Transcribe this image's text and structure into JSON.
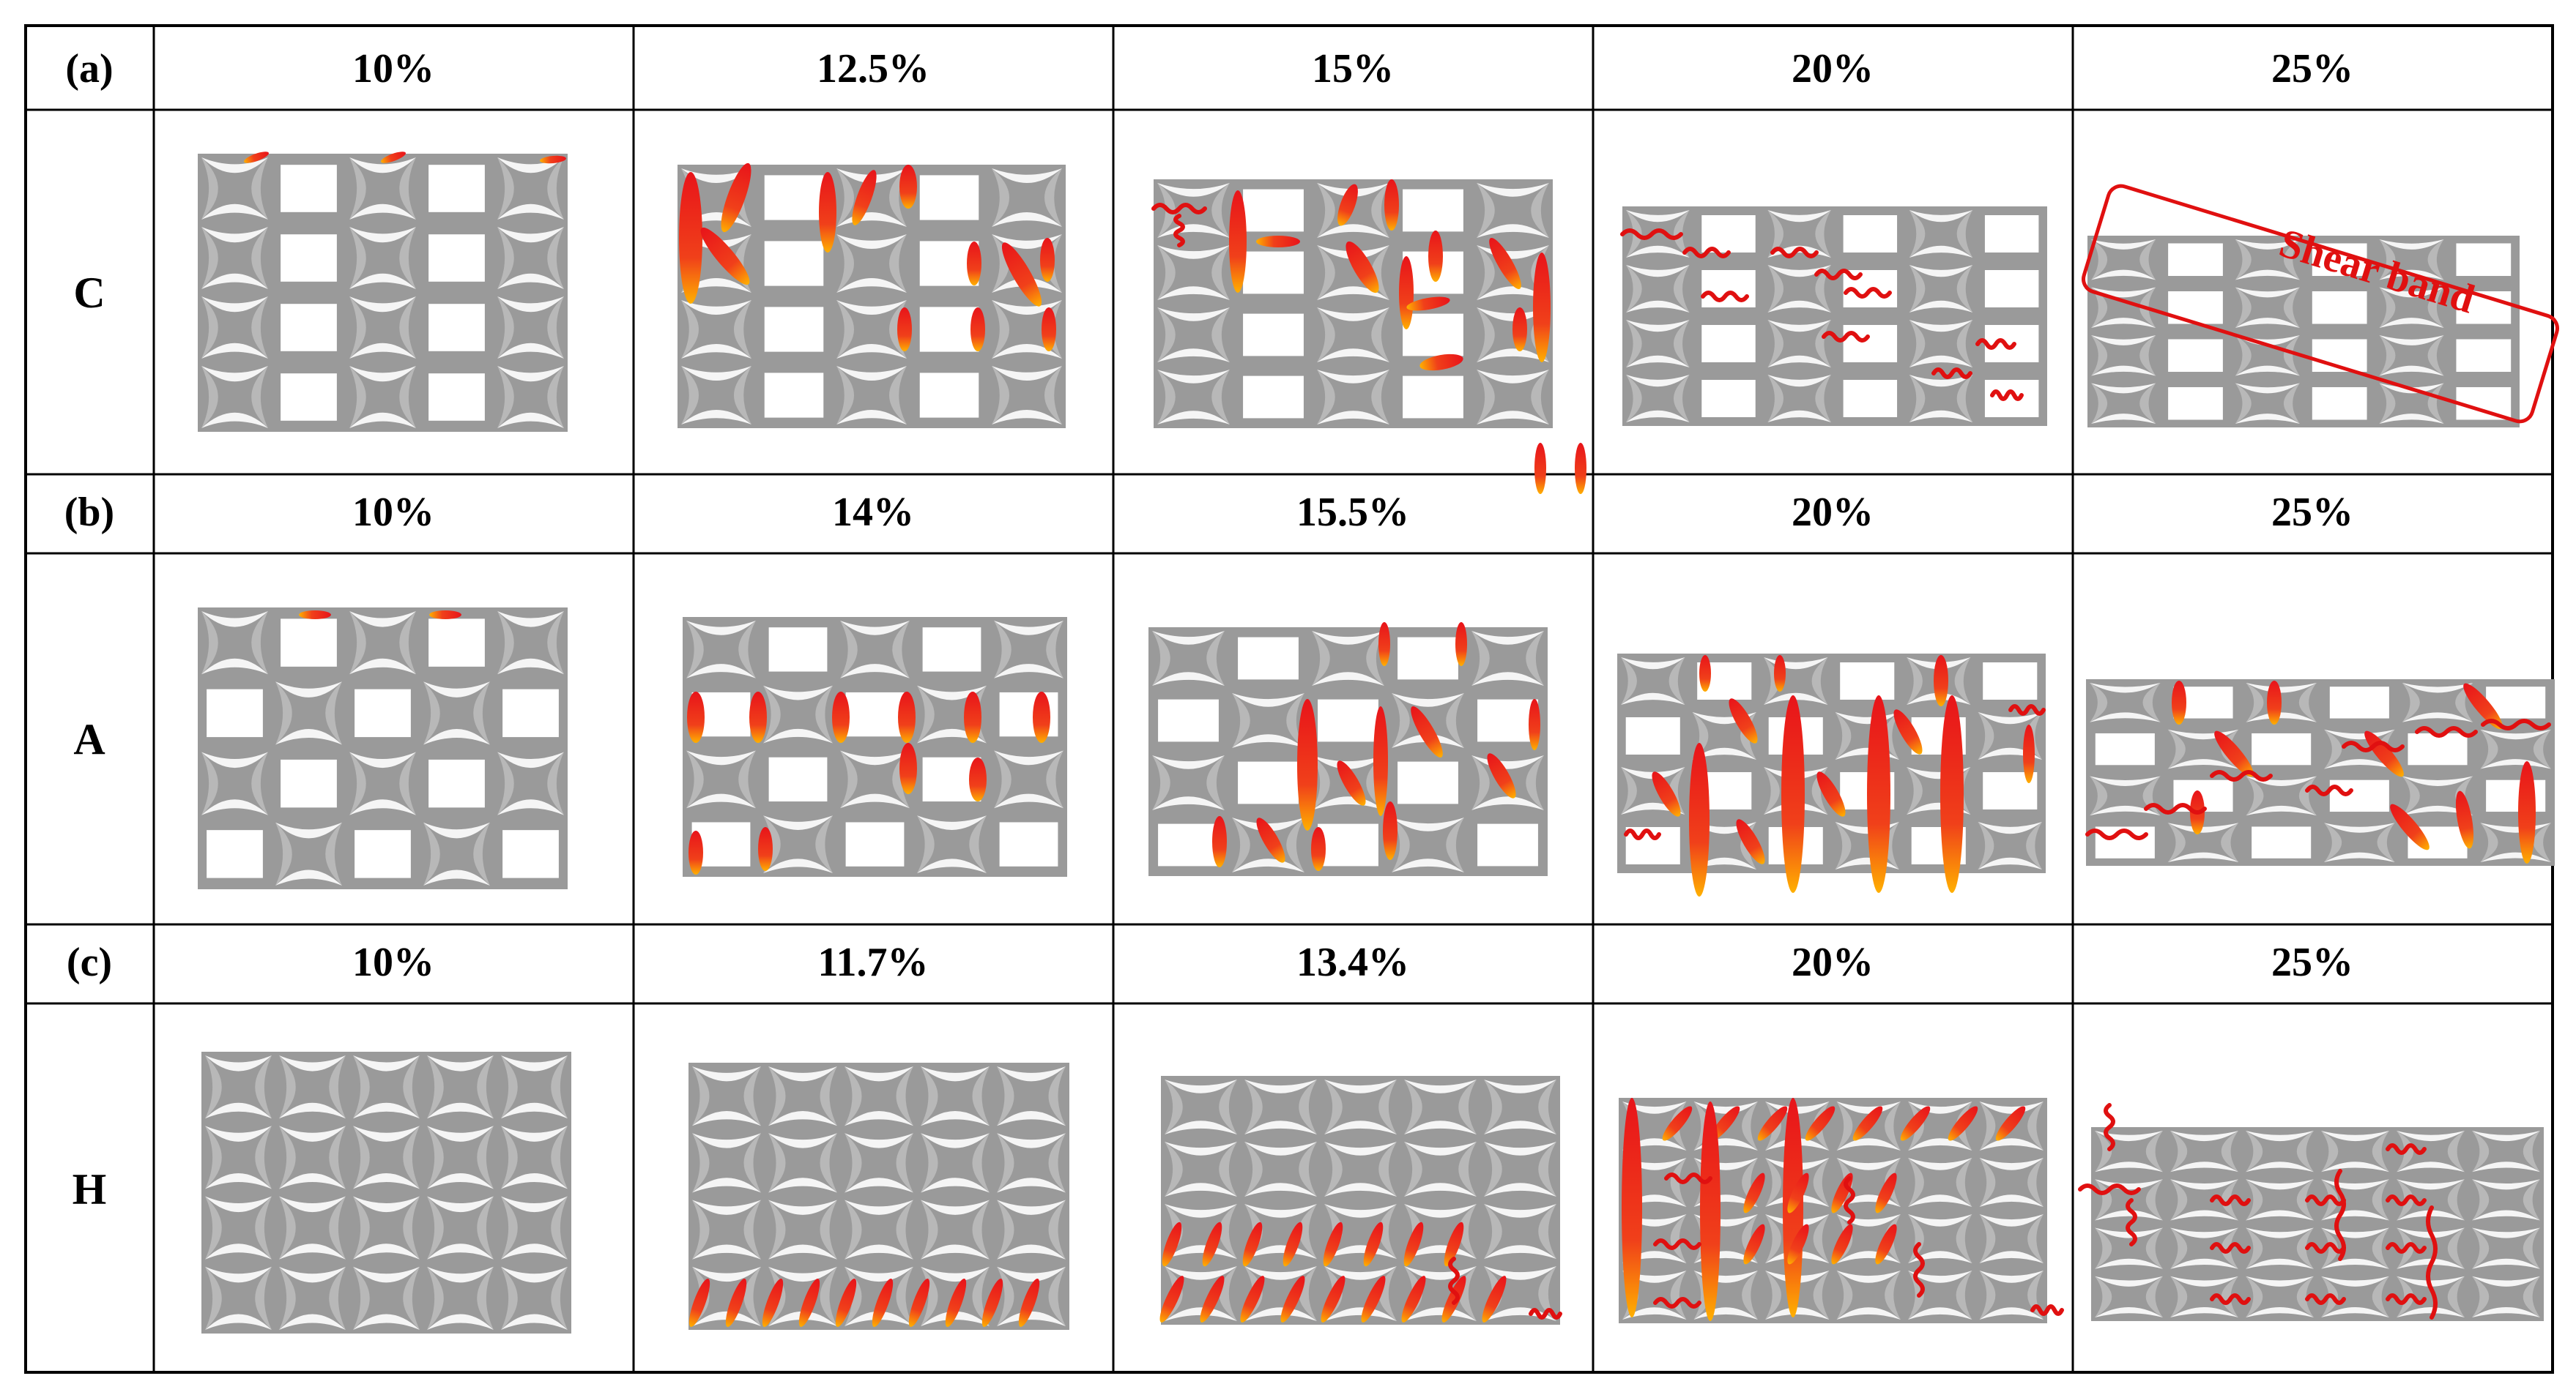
{
  "colors": {
    "frame": "#9a9a9a",
    "hole": "#ffffff",
    "eye": "#b8b8b8",
    "band_red": "#e8141a",
    "band_orange": "#ffb000",
    "crack": "#e01010"
  },
  "rows": [
    {
      "label": "(a)",
      "structure": "C",
      "strains": [
        "10%",
        "12.5%",
        "15%",
        "20%",
        "25%"
      ]
    },
    {
      "label": "(b)",
      "structure": "A",
      "strains": [
        "10%",
        "14%",
        "15.5%",
        "20%",
        "25%"
      ]
    },
    {
      "label": "(c)",
      "structure": "H",
      "strains": [
        "10%",
        "11.7%",
        "13.4%",
        "20%",
        "25%"
      ]
    }
  ],
  "annotation": {
    "text": "Shear band"
  }
}
